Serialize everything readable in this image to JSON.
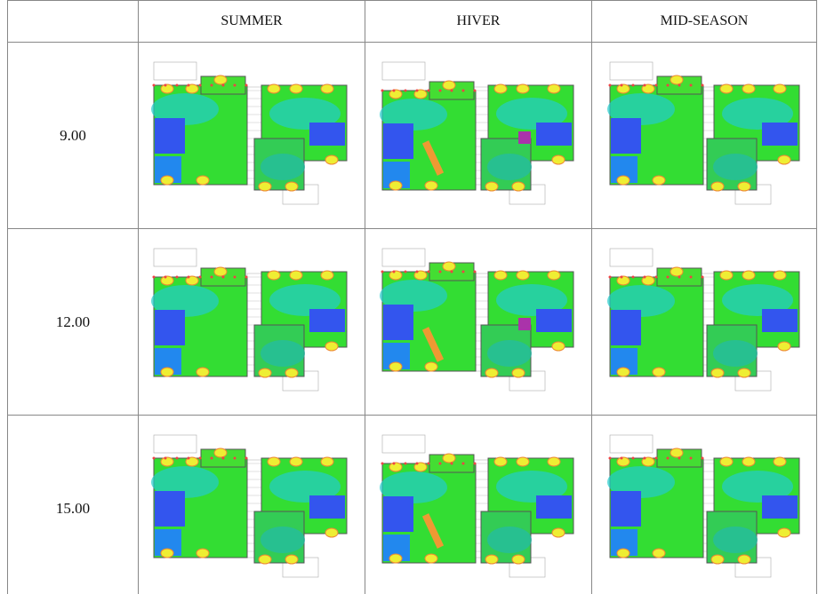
{
  "table": {
    "columns": [
      "SUMMER",
      "HIVER",
      "MID-SEASON"
    ],
    "rows": [
      "9.00",
      "12.00",
      "15.00"
    ]
  }
}
